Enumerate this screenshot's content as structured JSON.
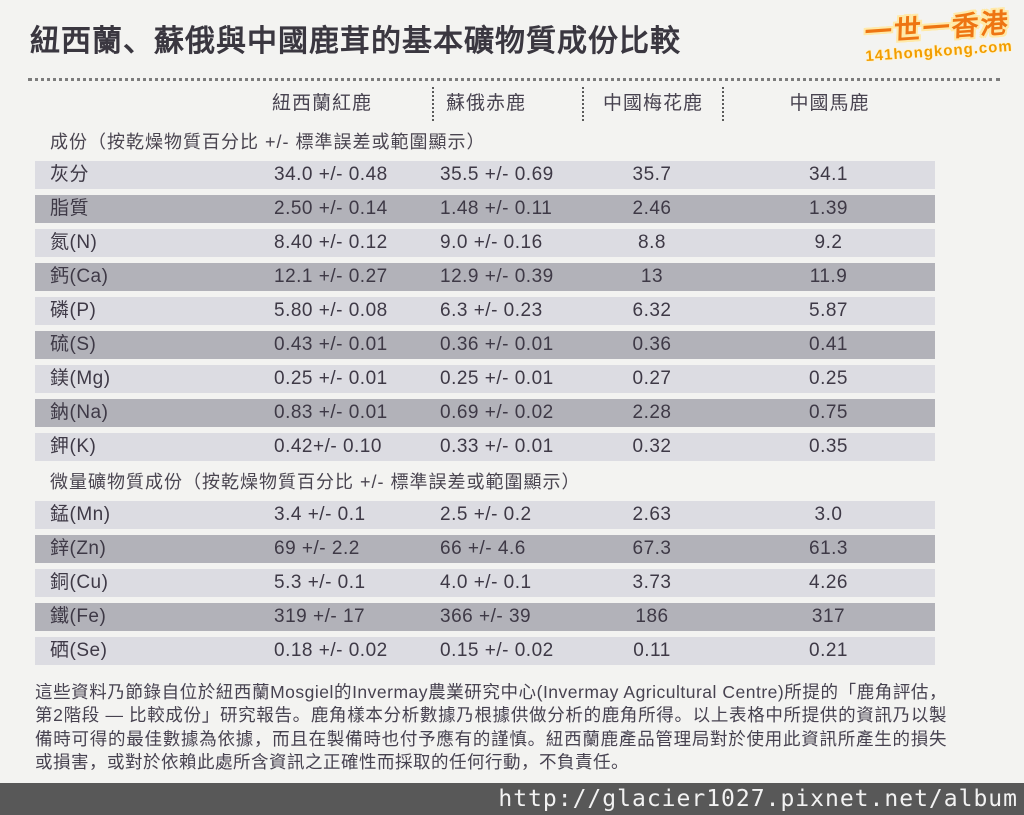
{
  "title": "紐西蘭、蘇俄與中國鹿茸的基本礦物質成份比較",
  "watermark": {
    "brand": "一世一香港",
    "domain": "141hongkong.com"
  },
  "url_watermark": "http://glacier1027.pixnet.net/album",
  "columns": [
    "紐西蘭紅鹿",
    "蘇俄赤鹿",
    "中國梅花鹿",
    "中國馬鹿"
  ],
  "sections": [
    {
      "header": "成份（按乾燥物質百分比 +/- 標準誤差或範圍顯示）",
      "rows": [
        {
          "label": "灰分",
          "values": [
            "34.0 +/- 0.48",
            "35.5 +/- 0.69",
            "35.7",
            "34.1"
          ]
        },
        {
          "label": "脂質",
          "values": [
            "2.50 +/- 0.14",
            "1.48 +/- 0.11",
            "2.46",
            "1.39"
          ]
        },
        {
          "label": "氮(N)",
          "values": [
            "8.40 +/- 0.12",
            "9.0 +/- 0.16",
            "8.8",
            "9.2"
          ]
        },
        {
          "label": "鈣(Ca)",
          "values": [
            "12.1 +/- 0.27",
            "12.9 +/- 0.39",
            "13",
            "11.9"
          ]
        },
        {
          "label": "磷(P)",
          "values": [
            "5.80 +/- 0.08",
            "6.3 +/- 0.23",
            "6.32",
            "5.87"
          ]
        },
        {
          "label": "硫(S)",
          "values": [
            "0.43 +/- 0.01",
            "0.36 +/- 0.01",
            "0.36",
            "0.41"
          ]
        },
        {
          "label": "鎂(Mg)",
          "values": [
            "0.25 +/- 0.01",
            "0.25 +/- 0.01",
            "0.27",
            "0.25"
          ]
        },
        {
          "label": "鈉(Na)",
          "values": [
            "0.83 +/- 0.01",
            "0.69 +/- 0.02",
            "2.28",
            "0.75"
          ]
        },
        {
          "label": "鉀(K)",
          "values": [
            "0.42+/- 0.10",
            "0.33 +/- 0.01",
            "0.32",
            "0.35"
          ]
        }
      ]
    },
    {
      "header": "微量礦物質成份（按乾燥物質百分比 +/- 標準誤差或範圍顯示）",
      "rows": [
        {
          "label": "錳(Mn)",
          "values": [
            "3.4 +/- 0.1",
            "2.5 +/- 0.2",
            "2.63",
            "3.0"
          ]
        },
        {
          "label": "鋅(Zn)",
          "values": [
            "69 +/- 2.2",
            "66 +/- 4.6",
            "67.3",
            "61.3"
          ]
        },
        {
          "label": "銅(Cu)",
          "values": [
            "5.3 +/- 0.1",
            "4.0 +/- 0.1",
            "3.73",
            "4.26"
          ]
        },
        {
          "label": "鐵(Fe)",
          "values": [
            "319 +/- 17",
            "366 +/- 39",
            "186",
            "317"
          ]
        },
        {
          "label": "硒(Se)",
          "values": [
            "0.18 +/- 0.02",
            "0.15 +/- 0.02",
            "0.11",
            "0.21"
          ]
        }
      ]
    }
  ],
  "footer": "這些資料乃節錄自位於紐西蘭Mosgiel的Invermay農業研究中心(Invermay Agricultural Centre)所提的「鹿角評估，第2階段 — 比較成份」研究報告。鹿角樣本分析數據乃根據供做分析的鹿角所得。以上表格中所提供的資訊乃以製備時可得的最佳數據為依據，而且在製備時也付予應有的謹慎。紐西蘭鹿產品管理局對於使用此資訊所產生的損失或損害，或對於依賴此處所含資訊之正確性而採取的任何行動，不負責任。",
  "colors": {
    "row_light": "#dcdce2",
    "row_dark": "#b2b2b9",
    "page_bg": "#f3f3f1",
    "urlbar_bg": "#585858",
    "logo_orange": "#ee7512"
  }
}
